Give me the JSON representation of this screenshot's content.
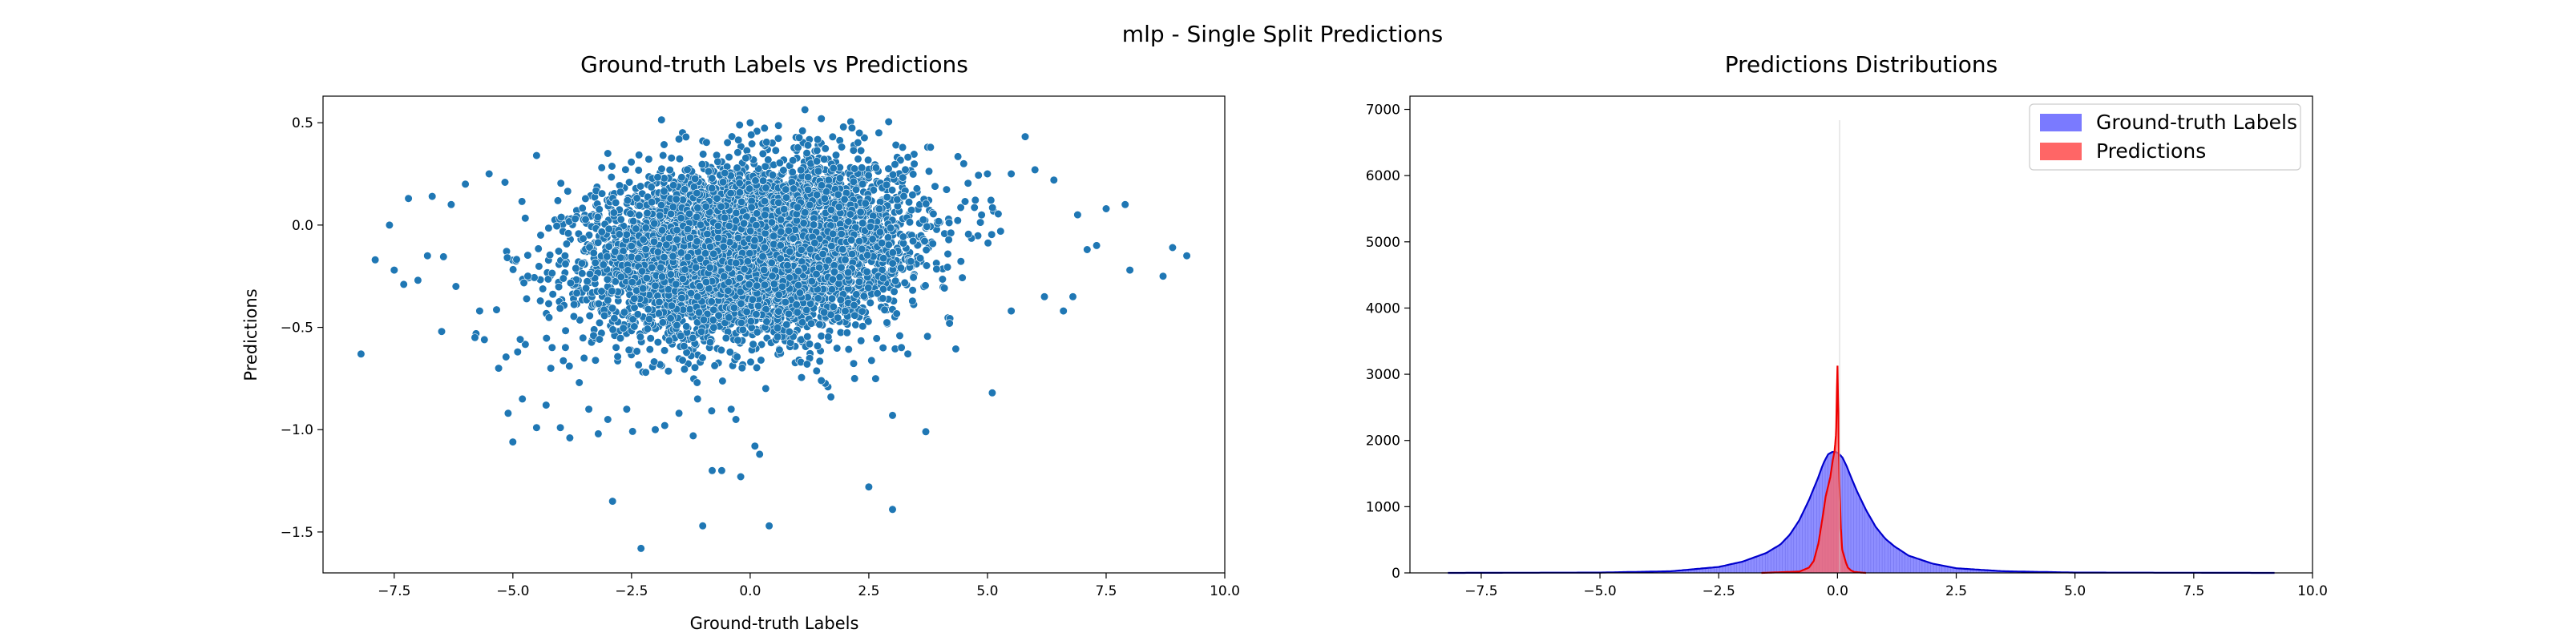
{
  "figure": {
    "suptitle": "mlp - Single Split Predictions"
  },
  "chart_data": [
    {
      "type": "scatter",
      "title": "Ground-truth Labels vs Predictions",
      "xlabel": "Ground-truth Labels",
      "ylabel": "Predictions",
      "xlim": [
        -9.0,
        10.0
      ],
      "ylim": [
        -1.7,
        0.63
      ],
      "xticks": [
        -7.5,
        -5.0,
        -2.5,
        0.0,
        2.5,
        5.0,
        7.5,
        10.0
      ],
      "xtick_labels": [
        "−7.5",
        "−5.0",
        "−2.5",
        "0.0",
        "2.5",
        "5.0",
        "7.5",
        "10.0"
      ],
      "yticks": [
        -1.5,
        -1.0,
        -0.5,
        0.0,
        0.5
      ],
      "ytick_labels": [
        "−1.5",
        "−1.0",
        "−0.5",
        "0.0",
        "0.5"
      ],
      "grid": false,
      "marker_color": "#1f77b4",
      "outlier_points": [
        [
          -8.2,
          -0.63
        ],
        [
          -7.9,
          -0.17
        ],
        [
          -7.5,
          -0.22
        ],
        [
          -7.3,
          -0.29
        ],
        [
          -7.0,
          -0.27
        ],
        [
          -7.2,
          0.13
        ],
        [
          -6.7,
          0.14
        ],
        [
          -6.5,
          -0.52
        ],
        [
          -6.0,
          0.2
        ],
        [
          -5.8,
          -0.55
        ],
        [
          -5.6,
          -0.56
        ],
        [
          -5.3,
          -0.7
        ],
        [
          -5.1,
          -0.92
        ],
        [
          -5.0,
          -1.06
        ],
        [
          -4.8,
          -0.85
        ],
        [
          -4.5,
          -0.99
        ],
        [
          -4.3,
          -0.88
        ],
        [
          -4.0,
          -0.99
        ],
        [
          -3.8,
          -1.04
        ],
        [
          -3.6,
          -0.77
        ],
        [
          -3.4,
          -0.9
        ],
        [
          -3.2,
          -1.02
        ],
        [
          -3.0,
          -0.95
        ],
        [
          -2.9,
          -1.35
        ],
        [
          -2.6,
          -0.9
        ],
        [
          -2.3,
          -1.58
        ],
        [
          -2.0,
          -1.0
        ],
        [
          -1.8,
          -0.98
        ],
        [
          -1.5,
          -0.92
        ],
        [
          -1.2,
          -1.03
        ],
        [
          -1.0,
          -1.47
        ],
        [
          -0.8,
          -1.2
        ],
        [
          -0.6,
          -1.2
        ],
        [
          -0.4,
          -0.9
        ],
        [
          -0.2,
          -1.23
        ],
        [
          0.2,
          -1.12
        ],
        [
          0.4,
          -1.47
        ],
        [
          0.1,
          -1.08
        ],
        [
          -0.3,
          -0.95
        ],
        [
          2.5,
          -1.28
        ],
        [
          3.0,
          -1.39
        ],
        [
          3.7,
          -1.01
        ],
        [
          3.0,
          -0.93
        ],
        [
          5.1,
          -0.82
        ],
        [
          1.7,
          -0.84
        ],
        [
          2.2,
          -0.75
        ],
        [
          1.5,
          -0.76
        ],
        [
          8.7,
          -0.25
        ],
        [
          9.2,
          -0.15
        ],
        [
          8.9,
          -0.11
        ],
        [
          8.0,
          -0.22
        ],
        [
          7.9,
          0.1
        ],
        [
          7.5,
          0.08
        ],
        [
          7.1,
          -0.12
        ],
        [
          6.8,
          -0.35
        ],
        [
          6.6,
          -0.42
        ],
        [
          6.4,
          0.22
        ],
        [
          6.0,
          0.27
        ],
        [
          5.5,
          0.25
        ],
        [
          5.0,
          0.25
        ],
        [
          4.5,
          0.3
        ],
        [
          3.8,
          0.38
        ],
        [
          2.3,
          0.45
        ],
        [
          1.5,
          0.52
        ],
        [
          0.0,
          0.5
        ],
        [
          -1.5,
          0.42
        ],
        [
          -3.0,
          0.35
        ],
        [
          -4.5,
          0.34
        ],
        [
          -5.5,
          0.25
        ],
        [
          -6.3,
          0.1
        ],
        [
          -6.8,
          -0.15
        ],
        [
          -6.2,
          -0.3
        ],
        [
          -5.7,
          -0.42
        ],
        [
          -4.9,
          -0.62
        ],
        [
          -4.2,
          -0.7
        ],
        [
          -3.5,
          -0.65
        ],
        [
          -2.2,
          -0.72
        ],
        [
          1.2,
          -0.68
        ],
        [
          2.8,
          -0.6
        ],
        [
          4.2,
          -0.48
        ],
        [
          5.5,
          -0.42
        ],
        [
          6.2,
          -0.35
        ],
        [
          7.3,
          -0.1
        ],
        [
          6.9,
          0.05
        ],
        [
          -7.6,
          0.0
        ]
      ],
      "cloud": {
        "approx_points": 6500,
        "x_center": 0.0,
        "x_sd": 1.6,
        "y_center": -0.12,
        "y_sd": 0.2
      }
    },
    {
      "type": "histogram",
      "title": "Predictions Distributions",
      "xlabel": "",
      "ylabel": "",
      "xlim": [
        -9.0,
        10.0
      ],
      "ylim": [
        0,
        7200
      ],
      "xticks": [
        -7.5,
        -5.0,
        -2.5,
        0.0,
        2.5,
        5.0,
        7.5,
        10.0
      ],
      "xtick_labels": [
        "−7.5",
        "−5.0",
        "−2.5",
        "0.0",
        "2.5",
        "5.0",
        "7.5",
        "10.0"
      ],
      "yticks": [
        0,
        1000,
        2000,
        3000,
        4000,
        5000,
        6000,
        7000
      ],
      "ytick_labels": [
        "0",
        "1000",
        "2000",
        "3000",
        "4000",
        "5000",
        "6000",
        "7000"
      ],
      "grid": false,
      "legend_position": "upper-right",
      "series": [
        {
          "name": "Ground-truth Labels",
          "fill_color": "#7a7aff",
          "line_color": "#0000cc",
          "x": [
            -8.2,
            -5.0,
            -3.5,
            -2.5,
            -2.0,
            -1.5,
            -1.2,
            -1.0,
            -0.8,
            -0.6,
            -0.4,
            -0.3,
            -0.2,
            -0.1,
            0.0,
            0.1,
            0.2,
            0.3,
            0.4,
            0.6,
            0.8,
            1.0,
            1.2,
            1.5,
            2.0,
            2.5,
            3.5,
            5.0,
            9.2
          ],
          "y": [
            0,
            5,
            25,
            90,
            170,
            300,
            430,
            580,
            800,
            1100,
            1450,
            1650,
            1790,
            1830,
            1820,
            1750,
            1600,
            1420,
            1250,
            950,
            700,
            520,
            400,
            260,
            140,
            70,
            25,
            5,
            0
          ]
        },
        {
          "name": "Predictions",
          "fill_color": "#ff6666",
          "line_color": "#ee0000",
          "x": [
            -1.6,
            -0.8,
            -0.6,
            -0.5,
            -0.4,
            -0.3,
            -0.25,
            -0.2,
            -0.15,
            -0.1,
            -0.06,
            -0.03,
            0.0,
            0.02,
            0.04,
            0.07,
            0.1,
            0.14,
            0.18,
            0.22,
            0.28,
            0.35,
            0.5,
            0.6
          ],
          "y": [
            0,
            20,
            80,
            180,
            450,
            900,
            1150,
            1300,
            1450,
            1700,
            1850,
            2100,
            3150,
            2300,
            1400,
            700,
            350,
            250,
            150,
            80,
            40,
            15,
            5,
            0
          ]
        }
      ]
    }
  ]
}
